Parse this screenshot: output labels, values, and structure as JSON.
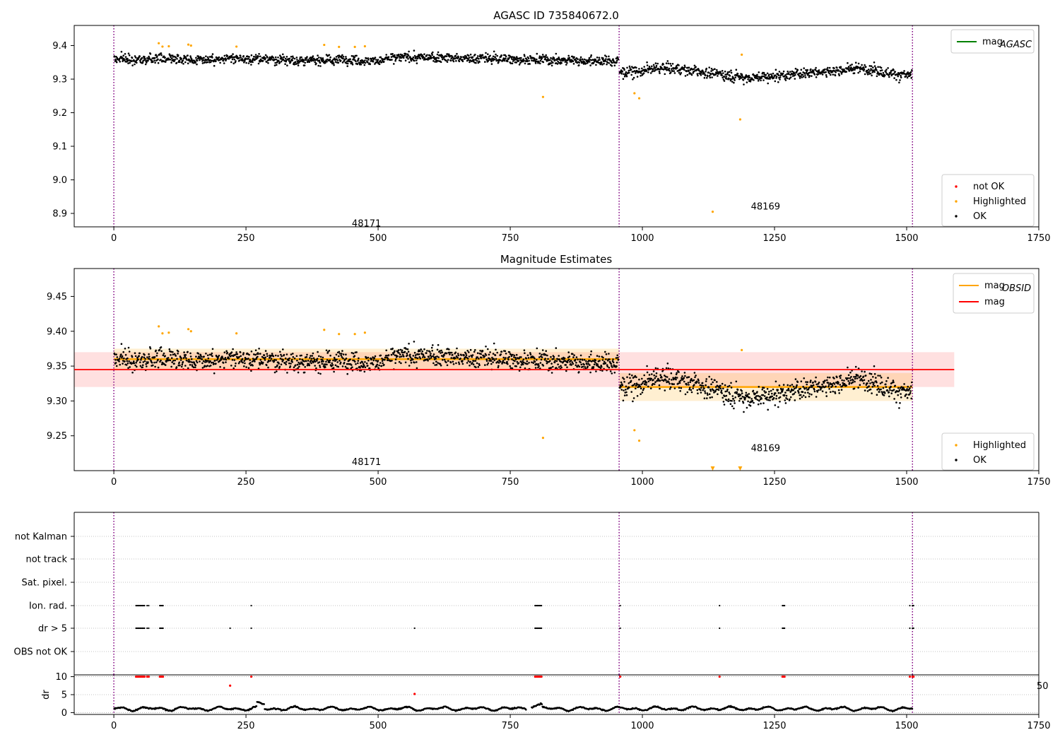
{
  "figure": {
    "panel1_title": "AGASC ID 735840672.0",
    "panel2_title": "Magnitude Estimates"
  },
  "colors": {
    "ok": "#000000",
    "highlighted": "#ffa500",
    "not_ok": "#ff0000",
    "agasc_line": "#008000",
    "obsid_line": "#ffa500",
    "mag_line": "#ff0000",
    "obs_boundary": "#800080",
    "grid": "#b0b0b0"
  },
  "chart_data": [
    {
      "type": "scatter",
      "title": "AGASC ID 735840672.0",
      "xlim": [
        -75,
        1750
      ],
      "ylim": [
        8.86,
        9.46
      ],
      "xticks": [
        0,
        250,
        500,
        750,
        1000,
        1250,
        1500,
        1750
      ],
      "yticks": [
        8.9,
        9.0,
        9.1,
        9.2,
        9.3,
        9.4
      ],
      "ytick_labels": [
        "8.9",
        "9.0",
        "9.1",
        "9.2",
        "9.3",
        "9.4"
      ],
      "obs_boundaries": [
        0,
        956,
        1511
      ],
      "obsid_labels": [
        {
          "text": "48171",
          "x": 478,
          "y": 8.87
        },
        {
          "text": "48169",
          "x": 1233,
          "y": 8.92
        }
      ],
      "series_ok": {
        "name": "OK",
        "segments": [
          {
            "x0": 0,
            "x1": 956,
            "level": 9.36,
            "noise": 0.013
          },
          {
            "x0": 956,
            "x1": 1511,
            "level": 9.32,
            "noise": 0.014
          }
        ]
      },
      "series_highlighted": {
        "name": "Highlighted",
        "points": [
          [
            85,
            9.407
          ],
          [
            92,
            9.397
          ],
          [
            104,
            9.398
          ],
          [
            141,
            9.403
          ],
          [
            146,
            9.4
          ],
          [
            232,
            9.397
          ],
          [
            398,
            9.402
          ],
          [
            426,
            9.396
          ],
          [
            456,
            9.396
          ],
          [
            475,
            9.398
          ],
          [
            812,
            9.247
          ],
          [
            985,
            9.258
          ],
          [
            994,
            9.243
          ],
          [
            1133,
            8.905
          ],
          [
            1185,
            9.18
          ],
          [
            1188,
            9.373
          ]
        ]
      },
      "series_not_ok": {
        "name": "not OK",
        "points": []
      },
      "legend_lines": [
        {
          "label": "mag",
          "sub": "AGASC",
          "color": "#008000"
        }
      ],
      "legend_points": [
        {
          "label": "not OK",
          "color": "#ff0000"
        },
        {
          "label": "Highlighted",
          "color": "#ffa500"
        },
        {
          "label": "OK",
          "color": "#000000"
        }
      ]
    },
    {
      "type": "scatter",
      "title": "Magnitude Estimates",
      "xlim": [
        -75,
        1750
      ],
      "ylim": [
        9.2,
        9.49
      ],
      "xticks": [
        0,
        250,
        500,
        750,
        1000,
        1250,
        1500,
        1750
      ],
      "yticks": [
        9.25,
        9.3,
        9.35,
        9.4,
        9.45
      ],
      "ytick_labels": [
        "9.25",
        "9.30",
        "9.35",
        "9.40",
        "9.45"
      ],
      "obs_boundaries": [
        0,
        956,
        1511
      ],
      "obsid_labels": [
        {
          "text": "48171",
          "x": 478,
          "y": 9.212
        },
        {
          "text": "48169",
          "x": 1233,
          "y": 9.232
        }
      ],
      "mag": {
        "value": 9.345,
        "band": [
          9.32,
          9.37
        ],
        "x0": -75,
        "x1": 1590
      },
      "mag_obsid": [
        {
          "x0": 0,
          "x1": 956,
          "value": 9.36,
          "band": [
            9.345,
            9.375
          ]
        },
        {
          "x0": 956,
          "x1": 1511,
          "value": 9.32,
          "band": [
            9.3,
            9.34
          ]
        }
      ],
      "series_ok": {
        "name": "OK",
        "segments": [
          {
            "x0": 0,
            "x1": 956,
            "level": 9.36,
            "noise": 0.013
          },
          {
            "x0": 956,
            "x1": 1511,
            "level": 9.32,
            "noise": 0.014
          }
        ]
      },
      "series_highlighted": {
        "name": "Highlighted",
        "points": [
          [
            85,
            9.407
          ],
          [
            92,
            9.397
          ],
          [
            104,
            9.398
          ],
          [
            141,
            9.403
          ],
          [
            146,
            9.4
          ],
          [
            232,
            9.397
          ],
          [
            398,
            9.402
          ],
          [
            426,
            9.396
          ],
          [
            456,
            9.396
          ],
          [
            475,
            9.398
          ],
          [
            812,
            9.247
          ],
          [
            985,
            9.258
          ],
          [
            994,
            9.243
          ],
          [
            1188,
            9.373
          ]
        ]
      },
      "out_of_range_markers": [
        1133,
        1185
      ],
      "legend_lines": [
        {
          "label": "mag",
          "sub": "OBSID",
          "color": "#ffa500"
        },
        {
          "label": "mag",
          "sub": "",
          "color": "#ff0000"
        }
      ],
      "legend_points": [
        {
          "label": "Highlighted",
          "color": "#ffa500"
        },
        {
          "label": "OK",
          "color": "#000000"
        }
      ]
    },
    {
      "type": "scatter",
      "title": "",
      "xlim": [
        -75,
        1750
      ],
      "categories": [
        "not Kalman",
        "not track",
        "Sat. pixel.",
        "Ion. rad.",
        "dr > 5",
        "OBS not OK"
      ],
      "obs_boundaries": [
        0,
        956,
        1511
      ],
      "flags": {
        "Ion. rad.": [
          42,
          44,
          46,
          48,
          50,
          52,
          54,
          56,
          58,
          63,
          66,
          87,
          89,
          91,
          93,
          260,
          797,
          799,
          801,
          803,
          805,
          807,
          809,
          958,
          1146,
          1265,
          1267,
          1269,
          1506,
          1511,
          1513
        ],
        "dr > 5": [
          42,
          44,
          46,
          48,
          50,
          52,
          54,
          56,
          58,
          63,
          66,
          87,
          89,
          91,
          93,
          220,
          260,
          569,
          797,
          799,
          801,
          803,
          805,
          807,
          809,
          958,
          1146,
          1265,
          1267,
          1269,
          1506,
          1511,
          1513
        ]
      }
    },
    {
      "type": "scatter",
      "title": "",
      "ylabel": "dr",
      "xlim": [
        -75,
        1750
      ],
      "ylim": [
        -0.5,
        10.5
      ],
      "xticks": [
        0,
        250,
        500,
        750,
        1000,
        1250,
        1500,
        1750
      ],
      "xtick_labels": [
        "0",
        "250",
        "500",
        "750",
        "1000",
        "1250",
        "1500",
        "1750"
      ],
      "yticks": [
        0,
        5,
        10
      ],
      "ytick_labels": [
        "0",
        "5",
        "10"
      ],
      "obs_boundaries": [
        0,
        956,
        1511
      ],
      "series_ok": {
        "name": "OK",
        "base": 1.1,
        "amplitude": 0.6
      },
      "series_not_ok": {
        "name": "not OK",
        "points": [
          [
            42,
            10
          ],
          [
            44,
            10
          ],
          [
            46,
            10
          ],
          [
            48,
            10
          ],
          [
            50,
            10
          ],
          [
            52,
            10
          ],
          [
            54,
            10
          ],
          [
            56,
            10
          ],
          [
            58,
            10
          ],
          [
            63,
            10
          ],
          [
            66,
            10
          ],
          [
            87,
            10
          ],
          [
            89,
            10
          ],
          [
            91,
            10
          ],
          [
            93,
            10
          ],
          [
            220,
            7.5
          ],
          [
            260,
            10
          ],
          [
            569,
            5.2
          ],
          [
            797,
            10
          ],
          [
            799,
            10
          ],
          [
            801,
            10
          ],
          [
            803,
            10
          ],
          [
            805,
            10
          ],
          [
            807,
            10
          ],
          [
            809,
            10
          ],
          [
            958,
            10
          ],
          [
            1146,
            10
          ],
          [
            1265,
            10
          ],
          [
            1267,
            10
          ],
          [
            1269,
            10
          ],
          [
            1506,
            10
          ],
          [
            1511,
            10
          ],
          [
            1513,
            10
          ]
        ]
      },
      "clipped_label": "50"
    }
  ]
}
